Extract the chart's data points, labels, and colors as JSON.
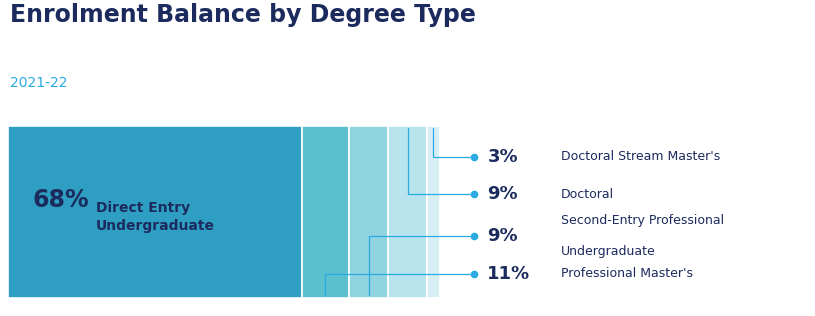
{
  "title": "Enrolment Balance by Degree Type",
  "subtitle": "2021-22",
  "title_color": "#1c2b5e",
  "subtitle_color": "#29abe2",
  "background_color": "#ffffff",
  "segments": [
    {
      "label": "Direct Entry\nUndergraduate",
      "pct": 68,
      "color": "#2e9fc2"
    },
    {
      "label": "Professional Master's",
      "pct": 11,
      "color": "#5abfcf"
    },
    {
      "label": "Second-Entry Professional\nUndergraduate",
      "pct": 9,
      "color": "#90d4e0"
    },
    {
      "label": "Doctoral",
      "pct": 9,
      "color": "#b8e4ed"
    },
    {
      "label": "Doctoral Stream Master's",
      "pct": 3,
      "color": "#d8eef5"
    }
  ],
  "annotation_color": "#29abe2",
  "title_fontsize": 17,
  "subtitle_fontsize": 10,
  "inner_pct_fontsize": 17,
  "inner_label_fontsize": 10,
  "ann_pct_fontsize": 13,
  "ann_label_fontsize": 9
}
